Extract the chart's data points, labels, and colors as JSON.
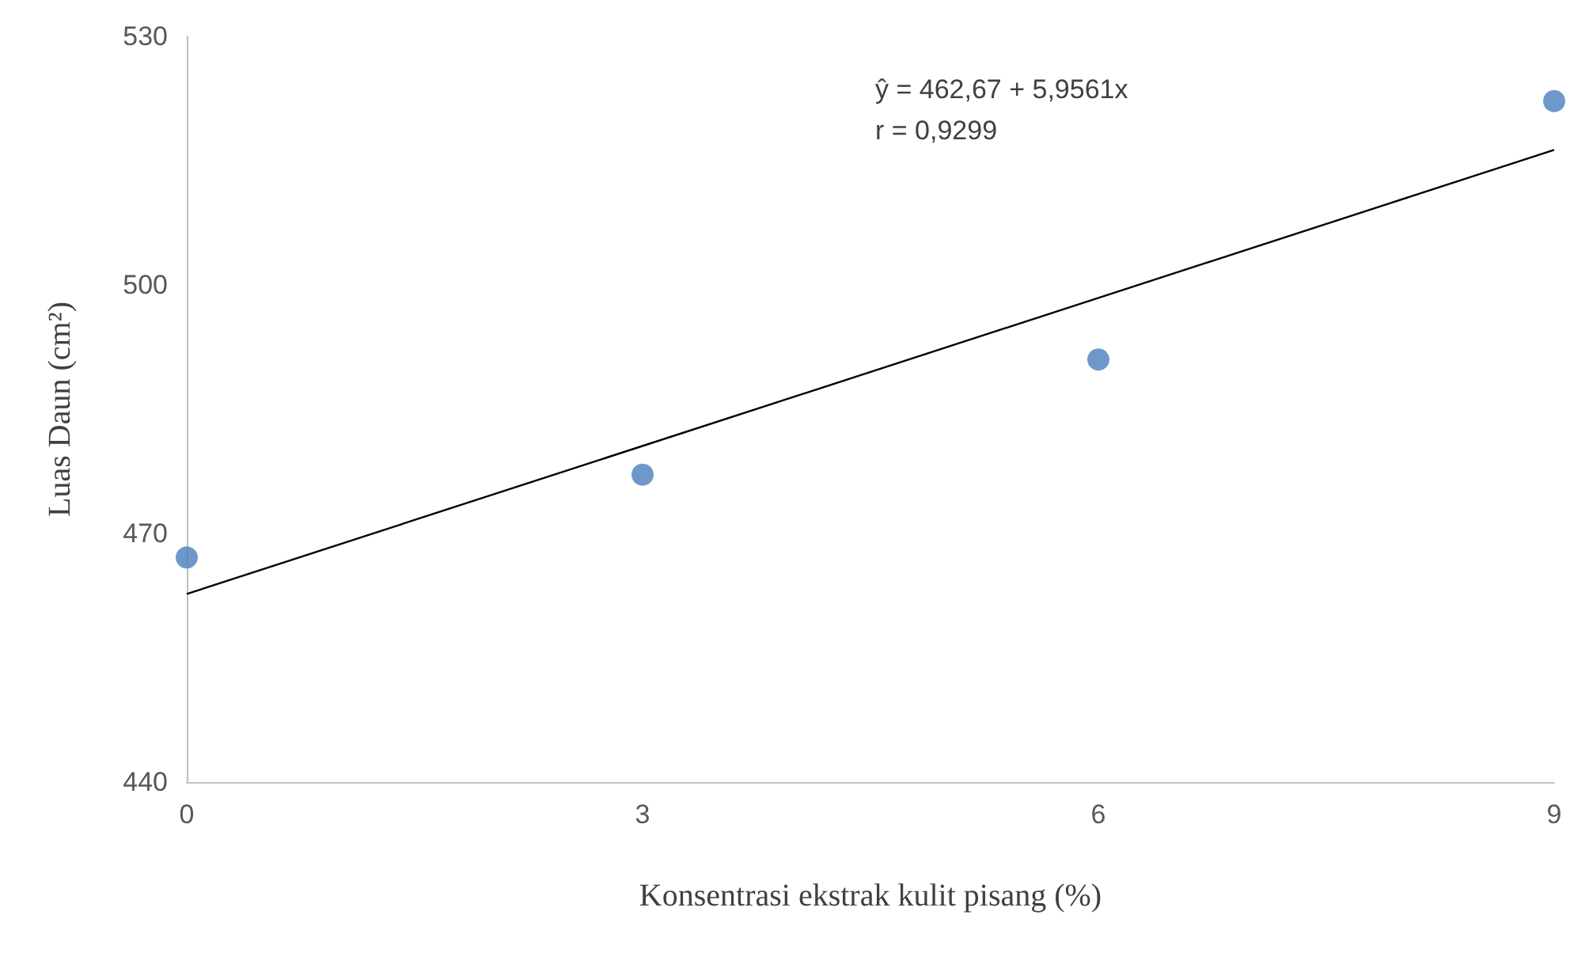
{
  "chart_data": {
    "type": "scatter",
    "xlabel": "Konsentrasi ekstrak kulit pisang (%)",
    "ylabel": "Luas Daun (cm²)",
    "x": [
      0,
      3,
      6,
      9
    ],
    "series": [
      {
        "color": "#4a7ebb",
        "values": [
          467.1,
          477.1,
          491.0,
          522.2
        ]
      },
      {
        "type": "line",
        "color": "#000000",
        "x": [
          0,
          9
        ],
        "values": [
          462.7,
          516.3
        ],
        "marker": "none"
      }
    ],
    "xlim": [
      0,
      9
    ],
    "xticks": [
      0,
      3,
      6,
      9
    ],
    "ylim": [
      440,
      530
    ],
    "yticks": [
      440,
      470,
      500,
      530
    ],
    "grid": false,
    "marker": "circle",
    "annotations": [
      "ŷ = 462,67 + 5,9561x",
      "r = 0,9299"
    ]
  }
}
